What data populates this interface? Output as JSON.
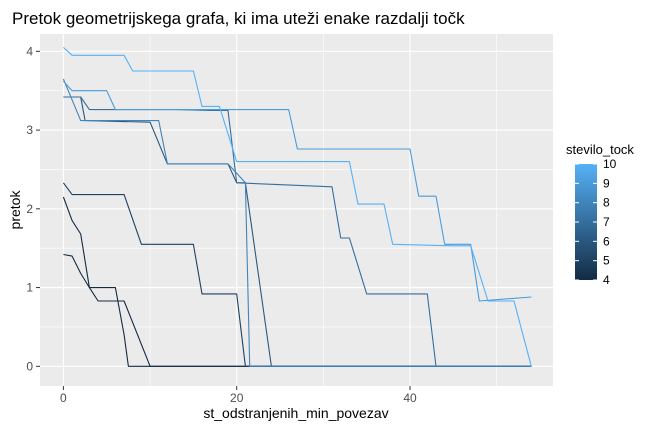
{
  "chart_data": {
    "type": "line",
    "title": "Pretok geometrijskega grafa, ki ima uteži enake razdalji točk",
    "xlabel": "st_odstranjenih_min_povezav",
    "ylabel": "pretok",
    "xlim": [
      -2.7,
      56.5
    ],
    "ylim": [
      -0.25,
      4.22
    ],
    "x_ticks": [
      0,
      20,
      40
    ],
    "y_ticks": [
      0,
      1,
      2,
      3,
      4
    ],
    "grid": true,
    "legend": {
      "title": "stevilo_tock",
      "position": "right",
      "min": 4,
      "max": 10,
      "ticks": [
        4,
        5,
        6,
        7,
        8,
        9,
        10
      ],
      "low_color": "#132B43",
      "high_color": "#56B1F7"
    },
    "series": [
      {
        "value": 4,
        "points": [
          [
            0,
            1.42
          ],
          [
            1,
            1.4
          ],
          [
            2,
            1.18
          ],
          [
            3,
            1.0
          ],
          [
            6,
            1.0
          ],
          [
            7,
            0.4
          ],
          [
            7.5,
            0
          ],
          [
            54,
            0
          ]
        ]
      },
      {
        "value": 4,
        "points": [
          [
            0,
            2.15
          ],
          [
            1,
            1.85
          ],
          [
            2,
            1.68
          ],
          [
            3,
            1.0
          ],
          [
            4,
            0.83
          ],
          [
            7,
            0.83
          ],
          [
            10,
            0
          ],
          [
            54,
            0
          ]
        ]
      },
      {
        "value": 5,
        "points": [
          [
            0,
            2.33
          ],
          [
            1,
            2.18
          ],
          [
            7,
            2.18
          ],
          [
            9,
            1.55
          ],
          [
            15,
            1.55
          ],
          [
            16,
            0.92
          ],
          [
            20,
            0.92
          ],
          [
            21,
            0
          ],
          [
            54,
            0
          ]
        ]
      },
      {
        "value": 6,
        "points": [
          [
            0,
            3.42
          ],
          [
            2,
            3.42
          ],
          [
            2.5,
            3.12
          ],
          [
            10,
            3.1
          ],
          [
            12,
            2.57
          ],
          [
            19,
            2.57
          ],
          [
            20,
            2.33
          ],
          [
            21,
            2.33
          ],
          [
            24,
            0
          ],
          [
            54,
            0
          ]
        ]
      },
      {
        "value": 7,
        "points": [
          [
            0,
            3.42
          ],
          [
            2,
            3.42
          ],
          [
            3,
            3.26
          ],
          [
            13,
            3.26
          ],
          [
            17,
            3.25
          ],
          [
            19,
            3.25
          ],
          [
            20,
            2.33
          ],
          [
            31,
            2.28
          ],
          [
            32,
            1.63
          ],
          [
            33,
            1.63
          ],
          [
            35,
            0.92
          ],
          [
            42,
            0.92
          ],
          [
            43,
            0
          ],
          [
            54,
            0
          ]
        ]
      },
      {
        "value": 8,
        "points": [
          [
            0,
            3.65
          ],
          [
            2,
            3.12
          ],
          [
            11,
            3.12
          ],
          [
            12,
            2.57
          ],
          [
            19,
            2.57
          ],
          [
            21,
            2.33
          ],
          [
            21.5,
            0
          ],
          [
            54,
            0
          ]
        ]
      },
      {
        "value": 9,
        "points": [
          [
            0,
            3.62
          ],
          [
            1,
            3.5
          ],
          [
            5,
            3.5
          ],
          [
            6,
            3.26
          ],
          [
            26,
            3.26
          ],
          [
            27,
            2.76
          ],
          [
            40,
            2.76
          ],
          [
            41,
            2.16
          ],
          [
            43,
            2.16
          ],
          [
            44,
            1.55
          ],
          [
            47,
            1.55
          ],
          [
            48,
            0.83
          ],
          [
            54,
            0.88
          ]
        ]
      },
      {
        "value": 10,
        "points": [
          [
            0,
            4.05
          ],
          [
            1,
            3.95
          ],
          [
            7,
            3.95
          ],
          [
            8,
            3.75
          ],
          [
            15,
            3.75
          ],
          [
            16,
            3.3
          ],
          [
            18,
            3.3
          ],
          [
            20,
            2.6
          ],
          [
            27,
            2.6
          ],
          [
            33,
            2.6
          ],
          [
            34,
            2.06
          ],
          [
            37,
            2.06
          ],
          [
            38,
            1.55
          ],
          [
            45,
            1.53
          ],
          [
            47,
            1.53
          ],
          [
            49,
            0.83
          ],
          [
            52,
            0.83
          ],
          [
            54,
            0
          ]
        ]
      }
    ]
  }
}
